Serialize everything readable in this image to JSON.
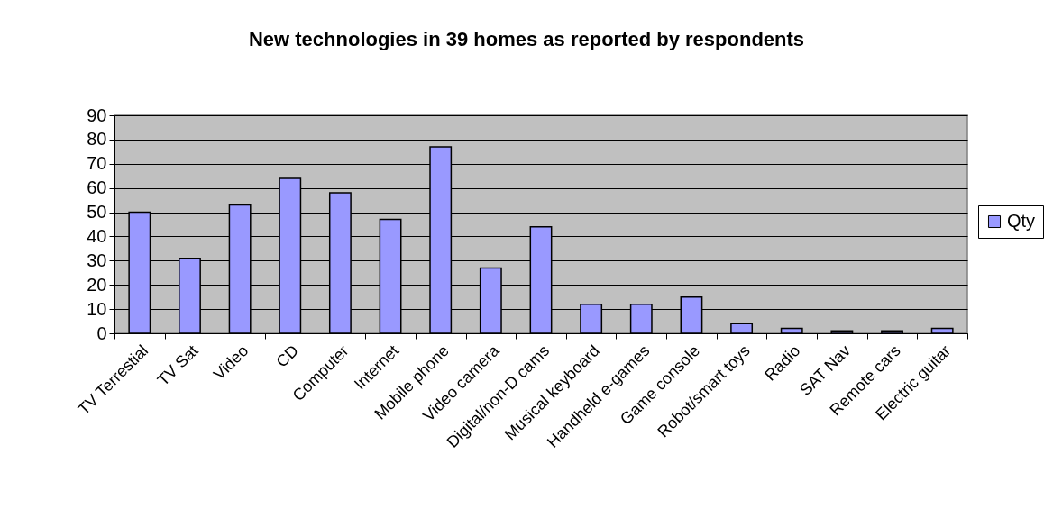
{
  "chart_data": {
    "type": "bar",
    "title": "New technologies in 39 homes as reported by respondents",
    "categories": [
      "TV Terrestial",
      "TV Sat",
      "Video",
      "CD",
      "Computer",
      "Internet",
      "Mobile phone",
      "Video camera",
      "Digital/non-D cams",
      "Musical keyboard",
      "Handheld e-games",
      "Game console",
      "Robot/smart toys",
      "Radio",
      "SAT Nav",
      "Remote cars",
      "Electric guitar"
    ],
    "series": [
      {
        "name": "Qty",
        "color": "#9999ff",
        "values": [
          50,
          31,
          53,
          64,
          58,
          47,
          77,
          27,
          44,
          12,
          12,
          15,
          4,
          2,
          1,
          1,
          2
        ]
      }
    ],
    "ylim": [
      0,
      90
    ],
    "yticks": [
      0,
      10,
      20,
      30,
      40,
      50,
      60,
      70,
      80,
      90
    ],
    "grid": "y",
    "legend": "right"
  }
}
